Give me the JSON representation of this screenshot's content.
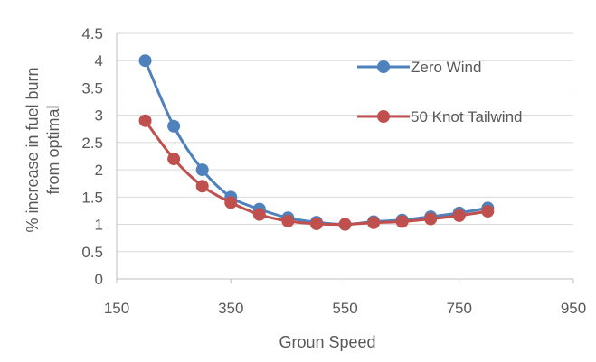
{
  "chart_data": {
    "type": "line",
    "xlabel": "Groun Speed",
    "ylabel_line1": "% increase in fuel burn",
    "ylabel_line2": "from optimal",
    "xlim": [
      150,
      950
    ],
    "ylim": [
      0,
      4.5
    ],
    "x_ticks": [
      "150",
      "350",
      "550",
      "750",
      "950"
    ],
    "y_ticks": [
      "0",
      "0.5",
      "1",
      "1.5",
      "2",
      "2.5",
      "3",
      "3.5",
      "4",
      "4.5"
    ],
    "grid": "horizontal",
    "legend_position": "top-right",
    "x": [
      200,
      250,
      300,
      350,
      400,
      450,
      500,
      550,
      600,
      650,
      700,
      750,
      800
    ],
    "series": [
      {
        "name": "Zero Wind",
        "color": "#4F81BD",
        "values": [
          4.0,
          2.8,
          2.0,
          1.5,
          1.28,
          1.12,
          1.04,
          1.0,
          1.05,
          1.08,
          1.14,
          1.21,
          1.3
        ]
      },
      {
        "name": "50 Knot Tailwind",
        "color": "#C0504D",
        "values": [
          2.9,
          2.2,
          1.7,
          1.4,
          1.18,
          1.06,
          1.01,
          1.0,
          1.03,
          1.05,
          1.1,
          1.16,
          1.24
        ]
      }
    ]
  },
  "colors": {
    "gridline": "#D9D9D9",
    "axis": "#BFBFBF",
    "text": "#595959"
  }
}
